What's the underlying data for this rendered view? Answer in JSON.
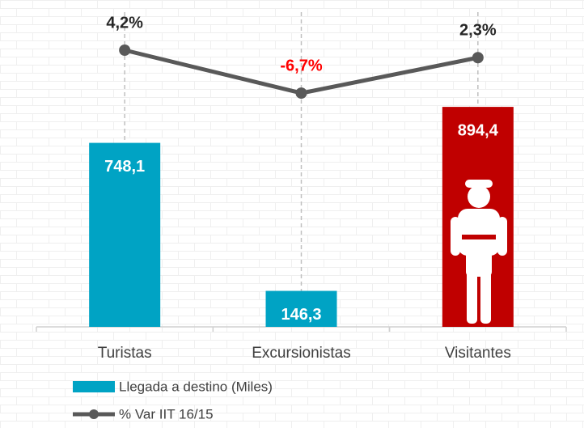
{
  "chart_data": {
    "type": "bar",
    "categories": [
      "Turistas",
      "Excursionistas",
      "Visitantes"
    ],
    "series": [
      {
        "name": "Llegada a destino (Miles)",
        "type": "bar",
        "color": "#00a3c4",
        "colors": [
          "#00a3c4",
          "#00a3c4",
          "#c00000"
        ],
        "values": [
          748.1,
          146.3,
          894.4
        ],
        "value_labels": [
          "748,1",
          "146,3",
          "894,4"
        ]
      },
      {
        "name": "% Var IIT 16/15",
        "type": "line",
        "axis": "y2",
        "color": "#595959",
        "values": [
          4.2,
          -6.7,
          2.3
        ],
        "value_labels": [
          "4,2%",
          "-6,7%",
          "2,3%"
        ],
        "value_label_colors": [
          "#262626",
          "#ff0000",
          "#262626"
        ]
      }
    ],
    "ylim": [
      0,
      1250
    ],
    "y2lim": [
      -66,
      12
    ]
  }
}
